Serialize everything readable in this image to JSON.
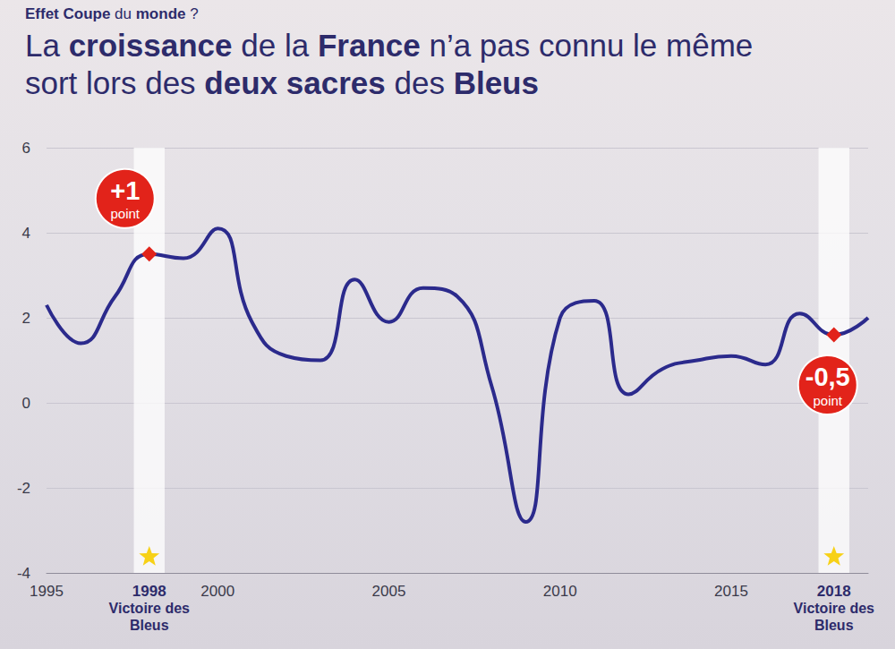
{
  "chart_data": {
    "type": "line",
    "kicker": "Effet Coupe du monde ?",
    "kicker_bold": [
      "Effet Coupe",
      "monde"
    ],
    "title": "La croissance de la France n’a pas connu le même sort lors des deux sacres des Bleus",
    "title_bold": [
      "croissance",
      "France",
      "deux sacres",
      "Bleus"
    ],
    "x": [
      1995,
      1996,
      1997,
      1998,
      1999,
      2000,
      2001,
      2002,
      2003,
      2004,
      2005,
      2006,
      2007,
      2008,
      2009,
      2010,
      2011,
      2012,
      2013,
      2014,
      2015,
      2016,
      2017,
      2018,
      2019
    ],
    "values": [
      2.3,
      1.4,
      2.5,
      3.5,
      3.4,
      4.1,
      1.9,
      1.1,
      1.0,
      2.9,
      1.9,
      2.7,
      2.5,
      0.4,
      -2.8,
      2.0,
      2.4,
      0.2,
      0.8,
      1.0,
      1.1,
      0.9,
      2.1,
      1.6,
      2.0
    ],
    "color": "#2b2a8c",
    "line_style": "smooth",
    "marker": "diamond",
    "xlim": [
      1995,
      2019
    ],
    "xticks": [
      1995,
      1998,
      2000,
      2005,
      2010,
      2015,
      2018
    ],
    "ylim": [
      -4,
      6
    ],
    "yticks": [
      -4,
      -2,
      0,
      2,
      4,
      6
    ],
    "grid": true,
    "annotations": [
      {
        "x": 1998,
        "label": "Victoire des Bleus",
        "badge": "+1",
        "badge_unit": "point"
      },
      {
        "x": 2018,
        "label": "Victoire des Bleus",
        "badge": "-0,5",
        "badge_unit": "point"
      }
    ]
  }
}
